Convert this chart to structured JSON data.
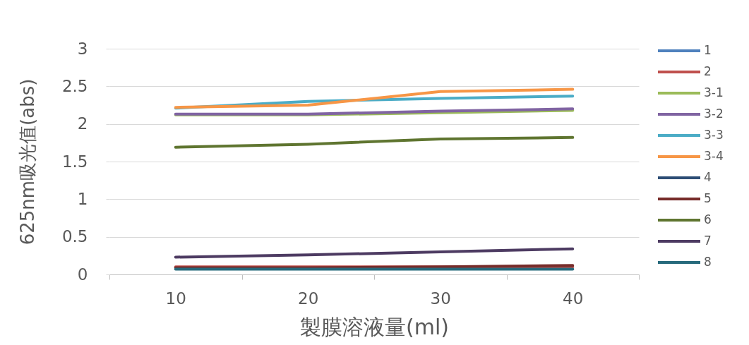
{
  "chart_data": {
    "type": "line",
    "xlabel": "製膜溶液量(ml)",
    "ylabel": "625nm吸光值(abs)",
    "categories": [
      "10",
      "20",
      "30",
      "40"
    ],
    "ylim": [
      0,
      3
    ],
    "yticks": [
      0,
      0.5,
      1,
      1.5,
      2,
      2.5,
      3
    ],
    "grid": "y",
    "legend": "right",
    "marker": "none",
    "line_style": "solid",
    "series": [
      {
        "name": "1",
        "color": "#4f81bd",
        "values": [
          null,
          null,
          null,
          null
        ]
      },
      {
        "name": "2",
        "color": "#c0504d",
        "values": [
          0.1,
          0.1,
          0.1,
          0.1
        ]
      },
      {
        "name": "3-1",
        "color": "#9bbb59",
        "values": [
          2.12,
          2.12,
          2.15,
          2.18
        ]
      },
      {
        "name": "3-2",
        "color": "#8064a2",
        "values": [
          2.13,
          2.13,
          2.17,
          2.2
        ]
      },
      {
        "name": "3-3",
        "color": "#4bacc6",
        "values": [
          2.21,
          2.3,
          2.34,
          2.37
        ]
      },
      {
        "name": "3-4",
        "color": "#f79646",
        "values": [
          2.22,
          2.25,
          2.43,
          2.46
        ]
      },
      {
        "name": "4",
        "color": "#2c4d75",
        "values": [
          null,
          null,
          null,
          null
        ]
      },
      {
        "name": "5",
        "color": "#772c2a",
        "values": [
          0.09,
          0.09,
          0.1,
          0.12
        ]
      },
      {
        "name": "6",
        "color": "#5f7530",
        "values": [
          1.69,
          1.73,
          1.8,
          1.82
        ]
      },
      {
        "name": "7",
        "color": "#4d3b62",
        "values": [
          0.23,
          0.26,
          0.3,
          0.34
        ]
      },
      {
        "name": "8",
        "color": "#276a7c",
        "values": [
          0.07,
          0.07,
          0.07,
          0.07
        ]
      }
    ]
  }
}
